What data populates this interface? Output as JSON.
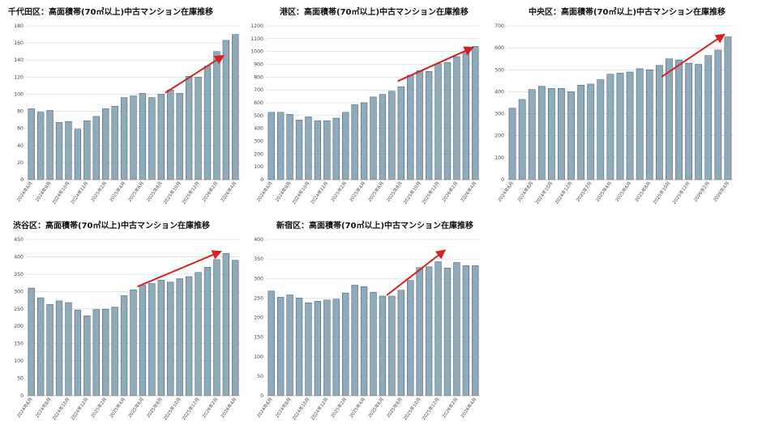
{
  "theme": {
    "bar_fill": "#8eaabb",
    "bar_stroke": "#3a5566",
    "grid": "#d2d2d2",
    "arrow": "#d42020"
  },
  "chart_data": [
    {
      "type": "bar",
      "title": "千代田区：高面積帯(70㎡以上)中古マンション在庫推移",
      "categories": [
        "2024年6月",
        "2024年7月",
        "2024年8月",
        "2024年9月",
        "2024年10月",
        "2024年11月",
        "2024年12月",
        "2025年1月",
        "2025年2月",
        "2025年3月",
        "2025年4月",
        "2025年5月",
        "2025年6月",
        "2025年7月",
        "2025年8月",
        "2025年9月",
        "2025年10月",
        "2025年11月",
        "2025年12月",
        "2026年1月",
        "2026年2月",
        "2026年3月",
        "2026年4月"
      ],
      "values": [
        83,
        79,
        81,
        67,
        68,
        59,
        69,
        74,
        83,
        86,
        96,
        98,
        101,
        96,
        100,
        105,
        101,
        121,
        120,
        133,
        150,
        163,
        170
      ],
      "ylim": [
        0,
        180
      ],
      "ystep": 20,
      "trend_arrow": {
        "from_index": 14.5,
        "from_value": 102,
        "to_index": 20.7,
        "to_value": 145
      }
    },
    {
      "type": "bar",
      "title": "港区：高面積帯(70㎡以上)中古マンション在庫推移",
      "categories": [
        "2024年6月",
        "2024年7月",
        "2024年8月",
        "2024年9月",
        "2024年10月",
        "2024年11月",
        "2024年12月",
        "2025年1月",
        "2025年2月",
        "2025年3月",
        "2025年4月",
        "2025年5月",
        "2025年6月",
        "2025年7月",
        "2025年8月",
        "2025年9月",
        "2025年10月",
        "2025年11月",
        "2025年12月",
        "2026年1月",
        "2026年2月",
        "2026年3月",
        "2026年4月"
      ],
      "values": [
        525,
        525,
        510,
        465,
        490,
        460,
        460,
        480,
        525,
        585,
        600,
        645,
        665,
        690,
        725,
        815,
        850,
        845,
        905,
        915,
        960,
        1000,
        1040
      ],
      "ylim": [
        0,
        1200
      ],
      "ystep": 100,
      "trend_arrow": {
        "from_index": 13.7,
        "from_value": 770,
        "to_index": 21.7,
        "to_value": 1030
      }
    },
    {
      "type": "bar",
      "title": "中央区：高面積帯(70㎡以上)中古マンション在庫推移",
      "categories": [
        "2024年6月",
        "2024年7月",
        "2024年8月",
        "2024年9月",
        "2024年10月",
        "2024年11月",
        "2024年12月",
        "2025年1月",
        "2025年2月",
        "2025年3月",
        "2025年4月",
        "2025年5月",
        "2025年6月",
        "2025年7月",
        "2025年8月",
        "2025年9月",
        "2025年10月",
        "2025年11月",
        "2025年12月",
        "2026年1月",
        "2026年2月",
        "2026年3月",
        "2026年4月"
      ],
      "values": [
        325,
        365,
        410,
        425,
        415,
        415,
        400,
        430,
        435,
        455,
        480,
        485,
        490,
        505,
        500,
        520,
        550,
        545,
        530,
        525,
        565,
        590,
        650
      ],
      "ylim": [
        0,
        700
      ],
      "ystep": 100,
      "trend_arrow": {
        "from_index": 15.3,
        "from_value": 470,
        "to_index": 21.6,
        "to_value": 660
      }
    },
    {
      "type": "bar",
      "title": "渋谷区：高面積帯(70㎡以上)中古マンション在庫推移",
      "categories": [
        "2024年6月",
        "2024年7月",
        "2024年8月",
        "2024年9月",
        "2024年10月",
        "2024年11月",
        "2024年12月",
        "2025年1月",
        "2025年2月",
        "2025年3月",
        "2025年4月",
        "2025年5月",
        "2025年6月",
        "2025年7月",
        "2025年8月",
        "2025年9月",
        "2025年10月",
        "2025年11月",
        "2025年12月",
        "2026年1月",
        "2026年2月",
        "2026年3月",
        "2026年4月"
      ],
      "values": [
        310,
        282,
        263,
        273,
        268,
        247,
        230,
        248,
        249,
        255,
        288,
        305,
        318,
        323,
        333,
        327,
        337,
        343,
        355,
        370,
        392,
        410,
        390
      ],
      "ylim": [
        0,
        450
      ],
      "ystep": 50,
      "trend_arrow": {
        "from_index": 11.5,
        "from_value": 315,
        "to_index": 20.4,
        "to_value": 415
      }
    },
    {
      "type": "bar",
      "title": "新宿区：高面積帯(70㎡以上)中古マンション在庫推移",
      "categories": [
        "2024年6月",
        "2024年7月",
        "2024年8月",
        "2024年9月",
        "2024年10月",
        "2024年11月",
        "2024年12月",
        "2025年1月",
        "2025年2月",
        "2025年3月",
        "2025年4月",
        "2025年5月",
        "2025年6月",
        "2025年7月",
        "2025年8月",
        "2025年9月",
        "2025年10月",
        "2025年11月",
        "2025年12月",
        "2026年1月",
        "2026年2月",
        "2026年3月",
        "2026年4月"
      ],
      "values": [
        268,
        252,
        258,
        250,
        238,
        242,
        245,
        247,
        263,
        283,
        279,
        265,
        255,
        255,
        270,
        295,
        328,
        330,
        343,
        327,
        341,
        333,
        333
      ],
      "ylim": [
        0,
        400
      ],
      "ystep": 50,
      "trend_arrow": {
        "from_index": 12.5,
        "from_value": 258,
        "to_index": 18.7,
        "to_value": 372
      }
    }
  ]
}
